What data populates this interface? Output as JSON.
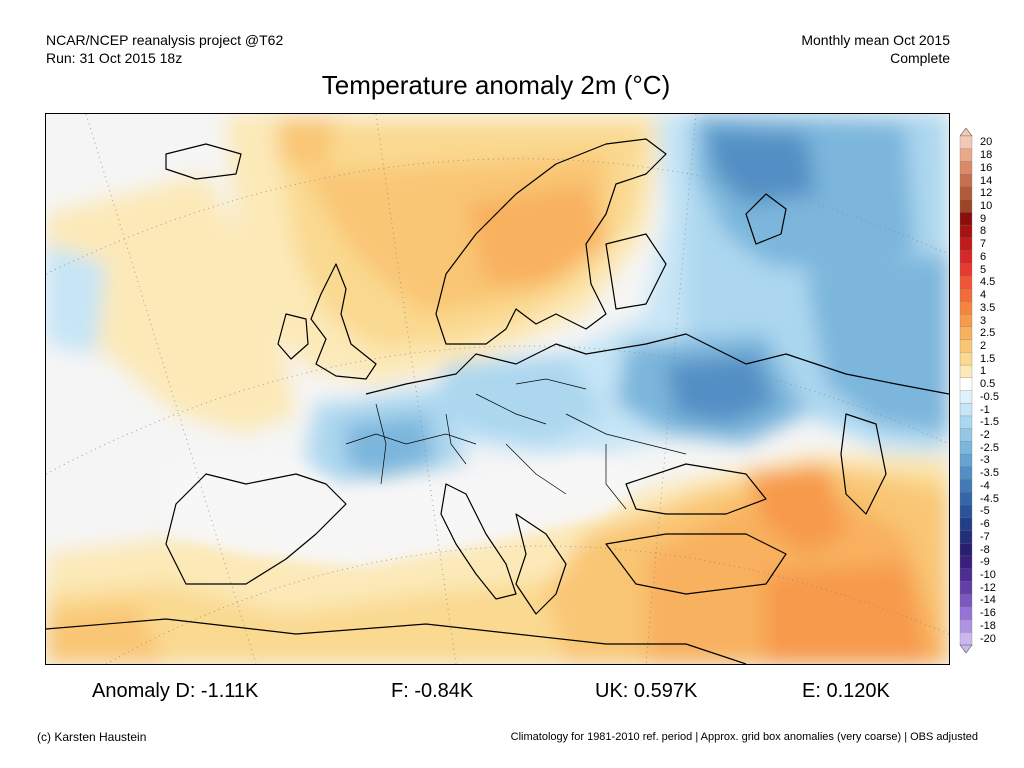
{
  "header": {
    "left_line1": "NCAR/NCEP reanalysis project @T62",
    "left_line2": "Run: 31 Oct 2015 18z",
    "right_line1": "Monthly mean Oct 2015",
    "right_line2": "Complete"
  },
  "title": "Temperature anomaly 2m (°C)",
  "legend": {
    "labels": [
      "20",
      "18",
      "16",
      "14",
      "12",
      "10",
      "9",
      "8",
      "7",
      "6",
      "5",
      "4.5",
      "4",
      "3.5",
      "3",
      "2.5",
      "2",
      "1.5",
      "1",
      "0.5",
      "-0.5",
      "-1",
      "-1.5",
      "-2",
      "-2.5",
      "-3",
      "-3.5",
      "-4",
      "-4.5",
      "-5",
      "-6",
      "-7",
      "-8",
      "-9",
      "-10",
      "-12",
      "-14",
      "-16",
      "-18",
      "-20"
    ],
    "colors": [
      "#f2c9b5",
      "#e8a88a",
      "#d98a68",
      "#c8704e",
      "#b25a3a",
      "#9c4628",
      "#8c0d0d",
      "#a81212",
      "#c21b1b",
      "#d62828",
      "#e63a2e",
      "#ef5635",
      "#f26c3a",
      "#f4843f",
      "#f79a4c",
      "#f8b15f",
      "#f9c675",
      "#fad990",
      "#fce9b8",
      "#ffffff",
      "#e1f1fb",
      "#c6e5f6",
      "#acd7ef",
      "#93c7e6",
      "#7cb6dc",
      "#67a3d1",
      "#538fc4",
      "#427ab6",
      "#3566a8",
      "#2a5399",
      "#243f8a",
      "#22307a",
      "#281f6e",
      "#3a1f7c",
      "#4e2d92",
      "#6340a8",
      "#7a58bf",
      "#9473d4",
      "#af93e3",
      "#cbb6ef"
    ]
  },
  "stats": {
    "anomaly_d": "Anomaly D: -1.11K",
    "f": "F: -0.84K",
    "uk": "UK: 0.597K",
    "e": "E: 0.120K"
  },
  "footer": {
    "left": "(c) Karsten Haustein",
    "right": "Climatology for 1981-2010 ref. period | Approx. grid box anomalies (very coarse) | OBS adjusted"
  }
}
